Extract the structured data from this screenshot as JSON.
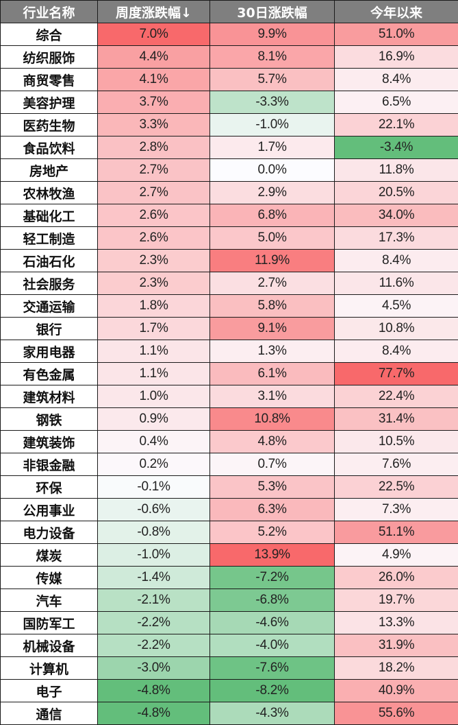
{
  "table": {
    "headers": [
      "行业名称",
      "周度涨跌幅↓",
      "30日涨跌幅",
      "今年以来"
    ],
    "rows": [
      {
        "name": "综合",
        "weekly": "7.0%",
        "d30": "9.9%",
        "ytd": "51.0%"
      },
      {
        "name": "纺织服饰",
        "weekly": "4.4%",
        "d30": "8.1%",
        "ytd": "16.9%"
      },
      {
        "name": "商贸零售",
        "weekly": "4.1%",
        "d30": "5.7%",
        "ytd": "8.4%"
      },
      {
        "name": "美容护理",
        "weekly": "3.7%",
        "d30": "-3.3%",
        "ytd": "6.5%"
      },
      {
        "name": "医药生物",
        "weekly": "3.3%",
        "d30": "-1.0%",
        "ytd": "22.1%"
      },
      {
        "name": "食品饮料",
        "weekly": "2.8%",
        "d30": "1.7%",
        "ytd": "-3.4%"
      },
      {
        "name": "房地产",
        "weekly": "2.7%",
        "d30": "0.0%",
        "ytd": "11.8%"
      },
      {
        "name": "农林牧渔",
        "weekly": "2.7%",
        "d30": "2.9%",
        "ytd": "20.5%"
      },
      {
        "name": "基础化工",
        "weekly": "2.6%",
        "d30": "6.8%",
        "ytd": "34.0%"
      },
      {
        "name": "轻工制造",
        "weekly": "2.6%",
        "d30": "5.0%",
        "ytd": "17.3%"
      },
      {
        "name": "石油石化",
        "weekly": "2.3%",
        "d30": "11.9%",
        "ytd": "8.4%"
      },
      {
        "name": "社会服务",
        "weekly": "2.3%",
        "d30": "2.7%",
        "ytd": "11.6%"
      },
      {
        "name": "交通运输",
        "weekly": "1.8%",
        "d30": "5.8%",
        "ytd": "4.5%"
      },
      {
        "name": "银行",
        "weekly": "1.7%",
        "d30": "9.1%",
        "ytd": "10.8%"
      },
      {
        "name": "家用电器",
        "weekly": "1.1%",
        "d30": "1.3%",
        "ytd": "8.4%"
      },
      {
        "name": "有色金属",
        "weekly": "1.1%",
        "d30": "6.1%",
        "ytd": "77.7%"
      },
      {
        "name": "建筑材料",
        "weekly": "1.0%",
        "d30": "3.1%",
        "ytd": "22.4%"
      },
      {
        "name": "钢铁",
        "weekly": "0.9%",
        "d30": "10.8%",
        "ytd": "31.4%"
      },
      {
        "name": "建筑装饰",
        "weekly": "0.4%",
        "d30": "4.8%",
        "ytd": "10.5%"
      },
      {
        "name": "非银金融",
        "weekly": "0.2%",
        "d30": "0.7%",
        "ytd": "7.6%"
      },
      {
        "name": "环保",
        "weekly": "-0.1%",
        "d30": "5.3%",
        "ytd": "22.5%"
      },
      {
        "name": "公用事业",
        "weekly": "-0.6%",
        "d30": "6.3%",
        "ytd": "7.3%"
      },
      {
        "name": "电力设备",
        "weekly": "-0.8%",
        "d30": "5.2%",
        "ytd": "51.1%"
      },
      {
        "name": "煤炭",
        "weekly": "-1.0%",
        "d30": "13.9%",
        "ytd": "4.9%"
      },
      {
        "name": "传媒",
        "weekly": "-1.4%",
        "d30": "-7.2%",
        "ytd": "26.0%"
      },
      {
        "name": "汽车",
        "weekly": "-2.1%",
        "d30": "-6.8%",
        "ytd": "19.7%"
      },
      {
        "name": "国防军工",
        "weekly": "-2.2%",
        "d30": "-4.6%",
        "ytd": "13.3%"
      },
      {
        "name": "机械设备",
        "weekly": "-2.2%",
        "d30": "-4.0%",
        "ytd": "31.9%"
      },
      {
        "name": "计算机",
        "weekly": "-3.0%",
        "d30": "-7.6%",
        "ytd": "18.2%"
      },
      {
        "name": "电子",
        "weekly": "-4.8%",
        "d30": "-8.2%",
        "ytd": "40.9%"
      },
      {
        "name": "通信",
        "weekly": "-4.8%",
        "d30": "-4.3%",
        "ytd": "55.6%"
      }
    ],
    "colors": {
      "header_bg": "#7f7f7f",
      "pos_max": "#f8696b",
      "neg_max": "#63be7b",
      "neutral": "#fcfcff"
    }
  }
}
